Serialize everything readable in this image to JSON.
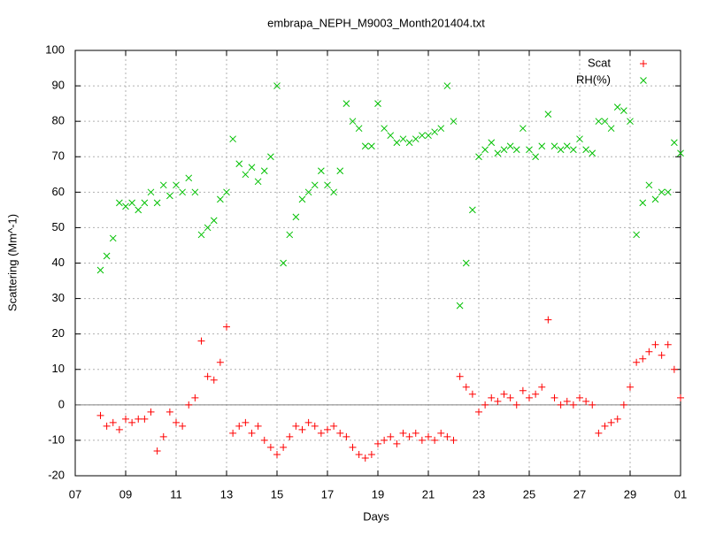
{
  "chart_data": {
    "type": "scatter",
    "title": "embrapa_NEPH_M9003_Month201404.txt",
    "x_label": "Days",
    "y_label": "Scattering (Mm^-1)",
    "xlim": [
      7,
      31
    ],
    "ylim": [
      -20,
      100
    ],
    "xticks": [
      {
        "value": 7,
        "label": "07"
      },
      {
        "value": 9,
        "label": "09"
      },
      11,
      13,
      15,
      17,
      19,
      21,
      23,
      25,
      27,
      29,
      {
        "value": 31,
        "label": "01"
      }
    ],
    "yticks": [
      -20,
      -10,
      0,
      10,
      20,
      30,
      40,
      50,
      60,
      70,
      80,
      90,
      100
    ],
    "grid": true,
    "zero_axis": true,
    "legend": "top-right",
    "x": [
      8,
      8.25,
      8.5,
      8.75,
      9,
      9.25,
      9.5,
      9.75,
      10,
      10.25,
      10.5,
      10.75,
      11,
      11.25,
      11.5,
      11.75,
      12,
      12.25,
      12.5,
      12.75,
      13,
      13.25,
      13.5,
      13.75,
      14,
      14.25,
      14.5,
      14.75,
      15,
      15.25,
      15.5,
      15.75,
      16,
      16.25,
      16.5,
      16.75,
      17,
      17.25,
      17.5,
      17.75,
      18,
      18.25,
      18.5,
      18.75,
      19,
      19.25,
      19.5,
      19.75,
      20,
      20.25,
      20.5,
      20.75,
      21,
      21.25,
      21.5,
      21.75,
      22,
      22.25,
      22.5,
      22.75,
      23,
      23.25,
      23.5,
      23.75,
      24,
      24.25,
      24.5,
      24.75,
      25,
      25.25,
      25.5,
      25.75,
      26,
      26.25,
      26.5,
      26.75,
      27,
      27.25,
      27.5,
      27.75,
      28,
      28.25,
      28.5,
      28.75,
      29,
      29.25,
      29.5,
      29.75,
      30,
      30.25,
      30.5,
      30.75,
      31
    ],
    "series": [
      {
        "name": "Scat",
        "color": "#ff0000",
        "marker": "plus",
        "values": [
          -3,
          -6,
          -5,
          -7,
          -4,
          -5,
          -4,
          -4,
          -2,
          -13,
          -9,
          -2,
          -5,
          -6,
          0,
          2,
          18,
          8,
          7,
          12,
          22,
          -8,
          -6,
          -5,
          -8,
          -6,
          -10,
          -12,
          -14,
          -12,
          -9,
          -6,
          -7,
          -5,
          -6,
          -8,
          -7,
          -6,
          -8,
          -9,
          -12,
          -14,
          -15,
          -14,
          -11,
          -10,
          -9,
          -11,
          -8,
          -9,
          -8,
          -10,
          -9,
          -10,
          -8,
          -9,
          -10,
          8,
          5,
          3,
          -2,
          0,
          2,
          1,
          3,
          2,
          0,
          4,
          2,
          3,
          5,
          24,
          2,
          0,
          1,
          0,
          2,
          1,
          0,
          -8,
          -6,
          -5,
          -4,
          0,
          5,
          12,
          13,
          15,
          17,
          14,
          17,
          10,
          2
        ]
      },
      {
        "name": "RH(%)",
        "color": "#00c000",
        "marker": "cross",
        "values": [
          38,
          42,
          47,
          57,
          56,
          57,
          55,
          57,
          60,
          57,
          62,
          59,
          62,
          60,
          64,
          60,
          48,
          50,
          52,
          58,
          60,
          75,
          68,
          65,
          67,
          63,
          66,
          70,
          90,
          40,
          48,
          53,
          58,
          60,
          62,
          66,
          62,
          60,
          66,
          85,
          80,
          78,
          73,
          73,
          85,
          78,
          76,
          74,
          75,
          74,
          75,
          76,
          76,
          77,
          78,
          90,
          80,
          28,
          40,
          55,
          70,
          72,
          74,
          71,
          72,
          73,
          72,
          78,
          72,
          70,
          73,
          82,
          73,
          72,
          73,
          72,
          75,
          72,
          71,
          80,
          80,
          78,
          84,
          83,
          80,
          48,
          57,
          62,
          58,
          60,
          60,
          74,
          71
        ]
      }
    ]
  }
}
